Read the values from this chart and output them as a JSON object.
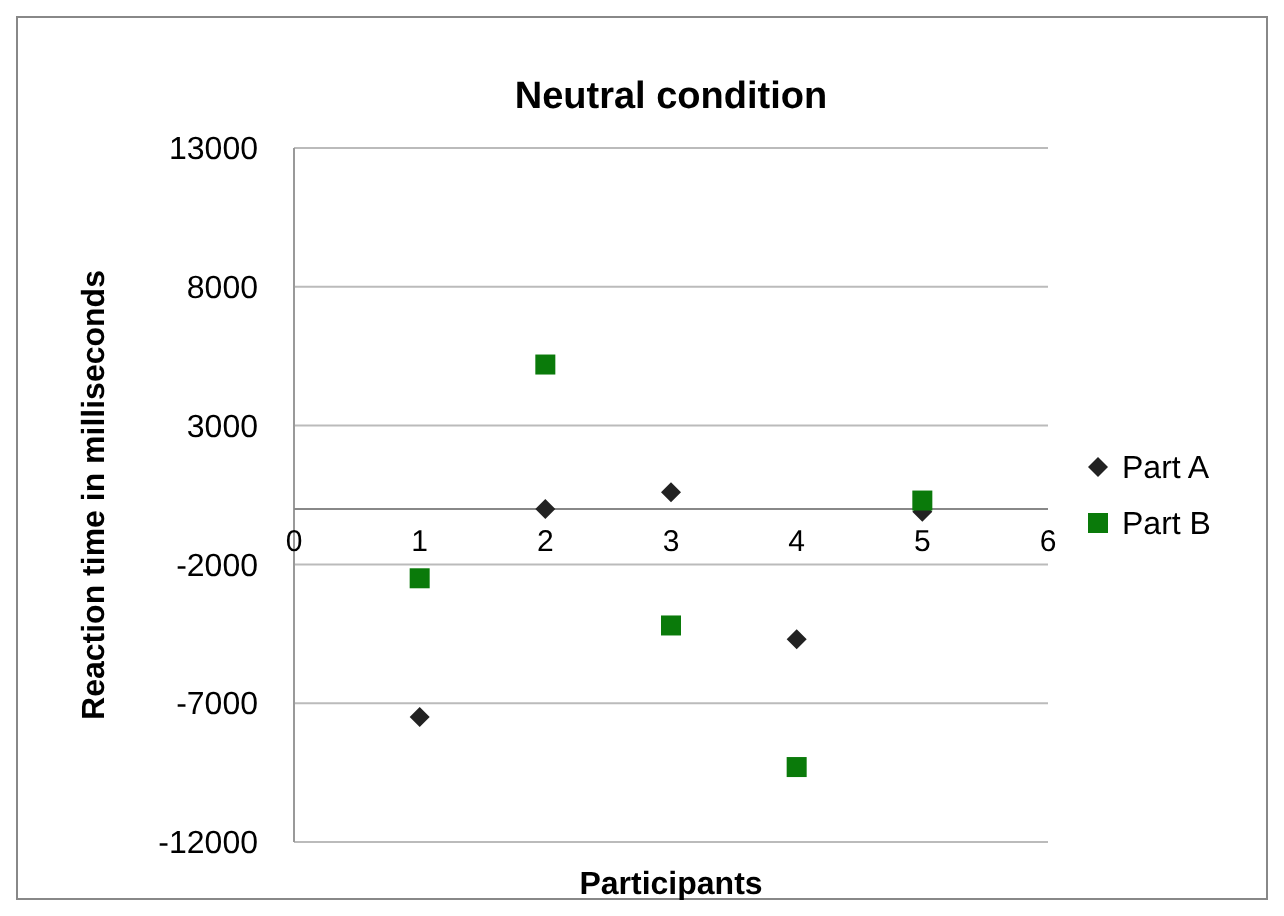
{
  "chart_data": {
    "type": "scatter",
    "title": "Neutral condition",
    "xlabel": "Participants",
    "ylabel": "Reaction time in milliseconds",
    "x": [
      1,
      2,
      3,
      4,
      5
    ],
    "series": [
      {
        "name": "Part A",
        "color": "#222222",
        "marker": "diamond",
        "values": [
          -7500,
          0,
          600,
          -4700,
          -100
        ]
      },
      {
        "name": "Part B",
        "color": "#0a7a0a",
        "marker": "square",
        "values": [
          -2500,
          5200,
          -4200,
          -9300,
          300
        ]
      }
    ],
    "xlim": [
      0,
      6
    ],
    "xticks": [
      0,
      1,
      2,
      3,
      4,
      5,
      6
    ],
    "ylim": [
      -12000,
      13000
    ],
    "yticks": [
      -12000,
      -7000,
      -2000,
      3000,
      8000,
      13000
    ],
    "grid": "y",
    "legend": "right"
  }
}
